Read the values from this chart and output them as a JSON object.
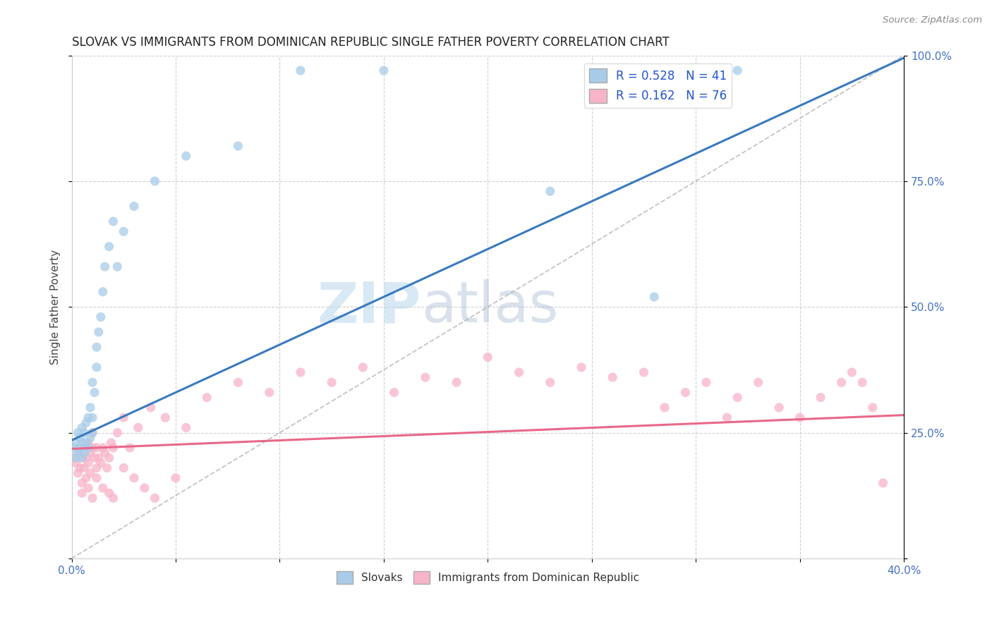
{
  "title": "SLOVAK VS IMMIGRANTS FROM DOMINICAN REPUBLIC SINGLE FATHER POVERTY CORRELATION CHART",
  "source_text": "Source: ZipAtlas.com",
  "ylabel": "Single Father Poverty",
  "xmin": 0.0,
  "xmax": 0.4,
  "ymin": 0.0,
  "ymax": 1.0,
  "right_yticks": [
    0.0,
    0.25,
    0.5,
    0.75,
    1.0
  ],
  "right_yticklabels": [
    "",
    "25.0%",
    "50.0%",
    "75.0%",
    "100.0%"
  ],
  "xticks": [
    0.0,
    0.05,
    0.1,
    0.15,
    0.2,
    0.25,
    0.3,
    0.35,
    0.4
  ],
  "xticklabels": [
    "0.0%",
    "",
    "",
    "",
    "",
    "",
    "",
    "",
    "40.0%"
  ],
  "legend_entry1": "R = 0.528   N = 41",
  "legend_entry2": "R = 0.162   N = 76",
  "legend_label1": "Slovaks",
  "legend_label2": "Immigrants from Dominican Republic",
  "blue_color": "#a8cce8",
  "pink_color": "#f8b4c8",
  "blue_line_color": "#3a7abf",
  "pink_line_color": "#e8688a",
  "watermark_zip": "ZIP",
  "watermark_atlas": "atlas",
  "blue_line_x": [
    0.0,
    0.4
  ],
  "blue_line_y": [
    0.235,
    0.995
  ],
  "pink_line_x": [
    0.0,
    0.4
  ],
  "pink_line_y": [
    0.218,
    0.285
  ],
  "ref_line_x": [
    0.0,
    0.4
  ],
  "ref_line_y": [
    0.0,
    1.0
  ],
  "slovaks_x": [
    0.001,
    0.002,
    0.002,
    0.003,
    0.003,
    0.004,
    0.004,
    0.005,
    0.005,
    0.005,
    0.006,
    0.006,
    0.007,
    0.007,
    0.008,
    0.008,
    0.009,
    0.009,
    0.01,
    0.01,
    0.01,
    0.011,
    0.012,
    0.012,
    0.013,
    0.014,
    0.015,
    0.016,
    0.018,
    0.02,
    0.022,
    0.025,
    0.03,
    0.04,
    0.055,
    0.08,
    0.11,
    0.15,
    0.23,
    0.28,
    0.32
  ],
  "slovaks_y": [
    0.22,
    0.2,
    0.23,
    0.21,
    0.25,
    0.22,
    0.24,
    0.2,
    0.23,
    0.26,
    0.21,
    0.25,
    0.23,
    0.27,
    0.22,
    0.28,
    0.24,
    0.3,
    0.25,
    0.28,
    0.35,
    0.33,
    0.38,
    0.42,
    0.45,
    0.48,
    0.53,
    0.58,
    0.62,
    0.67,
    0.58,
    0.65,
    0.7,
    0.75,
    0.8,
    0.82,
    0.97,
    0.97,
    0.73,
    0.52,
    0.97
  ],
  "dr_x": [
    0.001,
    0.002,
    0.003,
    0.004,
    0.004,
    0.005,
    0.005,
    0.006,
    0.006,
    0.007,
    0.007,
    0.008,
    0.008,
    0.009,
    0.009,
    0.01,
    0.01,
    0.011,
    0.012,
    0.012,
    0.013,
    0.014,
    0.015,
    0.016,
    0.017,
    0.018,
    0.019,
    0.02,
    0.022,
    0.025,
    0.028,
    0.032,
    0.038,
    0.045,
    0.055,
    0.065,
    0.08,
    0.095,
    0.11,
    0.125,
    0.14,
    0.155,
    0.17,
    0.185,
    0.2,
    0.215,
    0.23,
    0.245,
    0.26,
    0.275,
    0.285,
    0.295,
    0.305,
    0.315,
    0.32,
    0.33,
    0.34,
    0.35,
    0.36,
    0.37,
    0.375,
    0.38,
    0.385,
    0.39,
    0.005,
    0.008,
    0.01,
    0.012,
    0.015,
    0.018,
    0.02,
    0.025,
    0.03,
    0.035,
    0.04,
    0.05
  ],
  "dr_y": [
    0.2,
    0.19,
    0.17,
    0.21,
    0.18,
    0.2,
    0.15,
    0.22,
    0.18,
    0.2,
    0.16,
    0.23,
    0.19,
    0.21,
    0.17,
    0.22,
    0.25,
    0.2,
    0.18,
    0.22,
    0.2,
    0.19,
    0.22,
    0.21,
    0.18,
    0.2,
    0.23,
    0.22,
    0.25,
    0.28,
    0.22,
    0.26,
    0.3,
    0.28,
    0.26,
    0.32,
    0.35,
    0.33,
    0.37,
    0.35,
    0.38,
    0.33,
    0.36,
    0.35,
    0.4,
    0.37,
    0.35,
    0.38,
    0.36,
    0.37,
    0.3,
    0.33,
    0.35,
    0.28,
    0.32,
    0.35,
    0.3,
    0.28,
    0.32,
    0.35,
    0.37,
    0.35,
    0.3,
    0.15,
    0.13,
    0.14,
    0.12,
    0.16,
    0.14,
    0.13,
    0.12,
    0.18,
    0.16,
    0.14,
    0.12,
    0.16
  ]
}
